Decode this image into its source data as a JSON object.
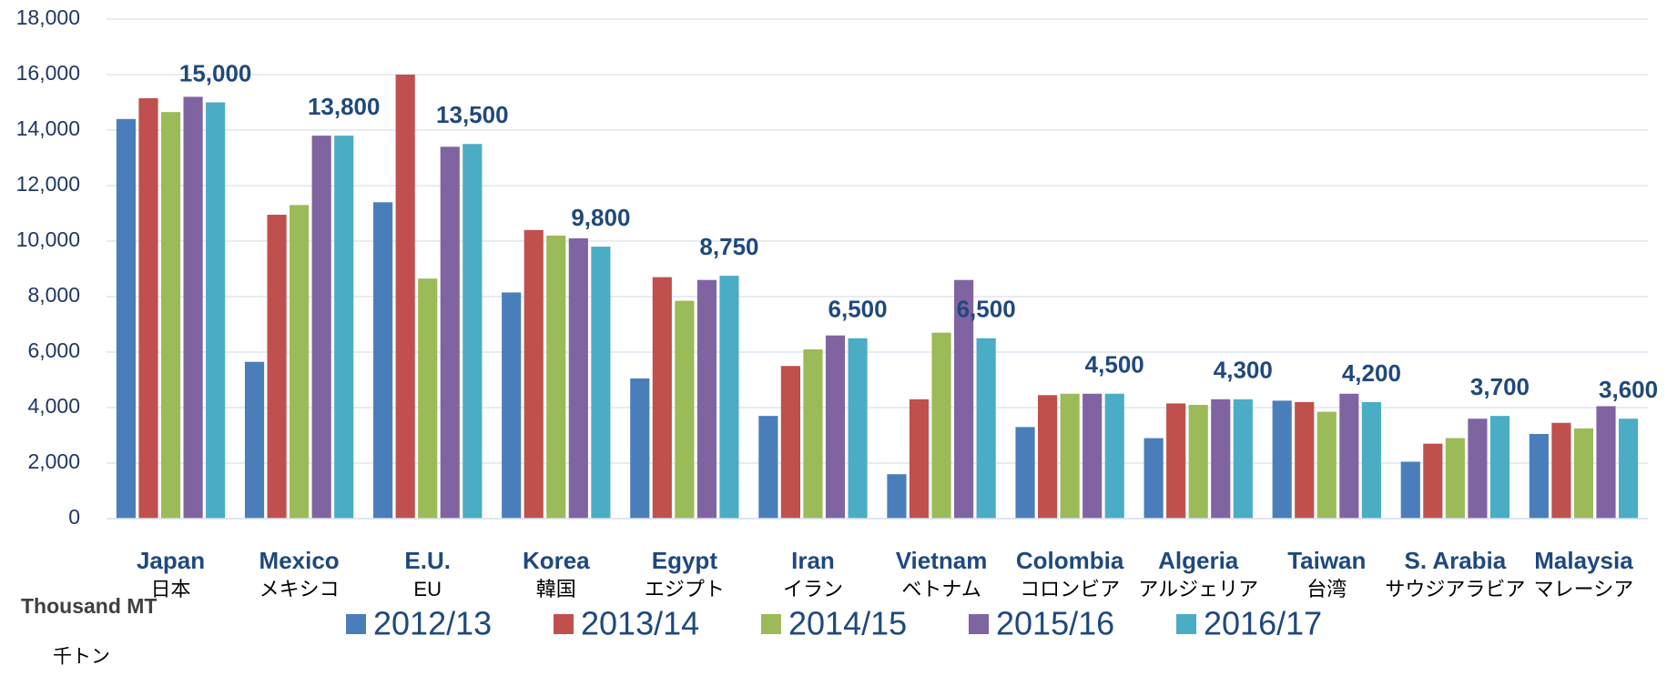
{
  "chart_data": {
    "type": "bar",
    "categories": [
      "Japan",
      "Mexico",
      "E.U.",
      "Korea",
      "Egypt",
      "Iran",
      "Vietnam",
      "Colombia",
      "Algeria",
      "Taiwan",
      "S. Arabia",
      "Malaysia"
    ],
    "categories_ja": [
      "日本",
      "メキシコ",
      "EU",
      "韓国",
      "エジプト",
      "イラン",
      "ベトナム",
      "コロンビア",
      "アルジェリア",
      "台湾",
      "サウジアラビア",
      "マレーシア"
    ],
    "y_label": "Thousand MT",
    "y_label_ja": "千トン",
    "ylim": [
      0,
      18000
    ],
    "yticks": [
      0,
      {
        "value": 2000,
        "label": "2,000"
      },
      {
        "value": 4000,
        "label": "4,000"
      },
      {
        "value": 6000,
        "label": "6,000"
      },
      {
        "value": 8000,
        "label": "8,000"
      },
      {
        "value": 10000,
        "label": "10,000"
      },
      {
        "value": 12000,
        "label": "12,000"
      },
      {
        "value": 14000,
        "label": "14,000"
      },
      {
        "value": 16000,
        "label": "16,000"
      },
      {
        "value": 18000,
        "label": "18,000"
      }
    ],
    "grid": true,
    "legend": "bottom",
    "series": [
      {
        "name": "2012/13",
        "color": "#4a7ebb",
        "values": [
          14400,
          5650,
          11400,
          8150,
          5050,
          3700,
          1600,
          3300,
          2900,
          4250,
          2050,
          3050
        ]
      },
      {
        "name": "2013/14",
        "color": "#c0504d",
        "values": [
          15150,
          10950,
          16000,
          10400,
          8700,
          5500,
          4300,
          4450,
          4150,
          4200,
          2700,
          3450
        ]
      },
      {
        "name": "2014/15",
        "color": "#9bbb59",
        "values": [
          14650,
          11300,
          8650,
          10200,
          7850,
          6100,
          6700,
          4500,
          4100,
          3850,
          2900,
          3250
        ]
      },
      {
        "name": "2015/16",
        "color": "#8064a2",
        "values": [
          15200,
          13800,
          13400,
          10100,
          8600,
          6600,
          8600,
          4500,
          4300,
          4500,
          3600,
          4050
        ]
      },
      {
        "name": "2016/17",
        "color": "#4bacc6",
        "values": [
          15000,
          13800,
          13500,
          9800,
          8750,
          6500,
          6500,
          4500,
          4300,
          4200,
          3700,
          3600
        ],
        "value_labels": [
          "15,000",
          "13,800",
          "13,500",
          "9,800",
          "8,750",
          "6,500",
          "6,500",
          "4,500",
          "4,300",
          "4,200",
          "3,700",
          "3,600"
        ]
      }
    ]
  }
}
